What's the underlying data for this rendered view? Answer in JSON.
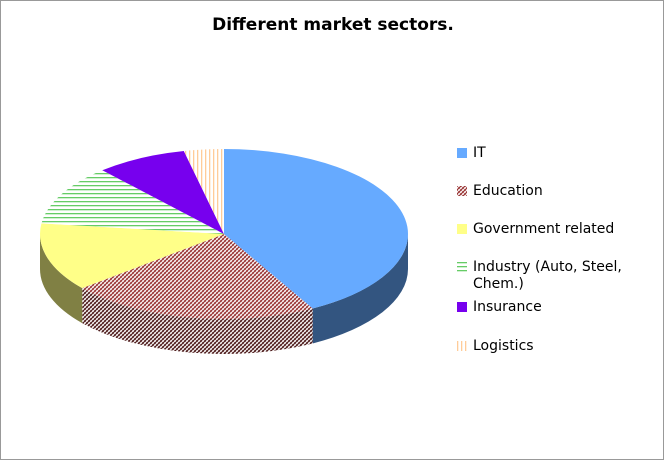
{
  "chart_data": {
    "type": "pie",
    "title": "Different market sectors.",
    "categories": [
      "IT",
      "Education",
      "Government related",
      "Industry (Auto, Steel, Chem.)",
      "Insurance",
      "Logistics"
    ],
    "values": [
      42,
      22,
      13,
      11.5,
      8,
      3.5
    ],
    "colors": [
      "#66aaff",
      "#993333",
      "#ffff88",
      "#66cc66",
      "#7700ee",
      "#ffcc99"
    ],
    "patterns": [
      "solid",
      "crosshatch",
      "solid",
      "horizontal",
      "solid",
      "vertical"
    ],
    "legend": "right"
  }
}
